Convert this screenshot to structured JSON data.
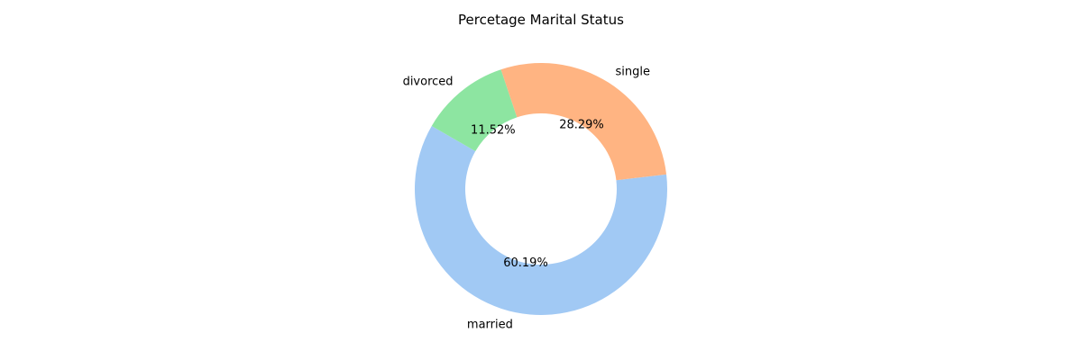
{
  "chart_data": {
    "type": "pie",
    "style": "donut",
    "title": "Percetage Marital Status",
    "start_angle_deg": 150,
    "direction": "counterclockwise",
    "slices": [
      {
        "label": "married",
        "value": 60.19,
        "pct_text": "60.19%",
        "color": "#a1c9f4"
      },
      {
        "label": "single",
        "value": 28.29,
        "pct_text": "28.29%",
        "color": "#ffb482"
      },
      {
        "label": "divorced",
        "value": 11.52,
        "pct_text": "11.52%",
        "color": "#8de5a1"
      }
    ]
  }
}
